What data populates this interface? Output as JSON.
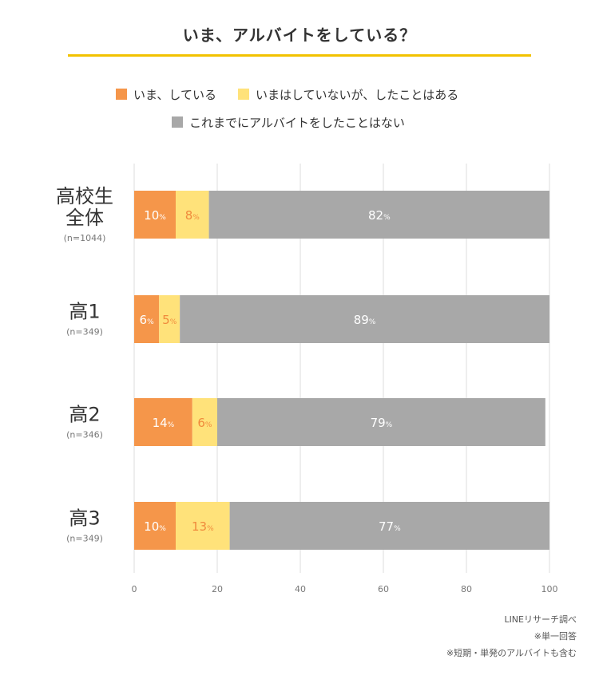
{
  "chart_data": {
    "type": "bar",
    "orientation": "horizontal",
    "stacked": true,
    "title": "いま、アルバイトをしている？",
    "categories": [
      {
        "name": "高校生\n全体",
        "n": "(n=1044)"
      },
      {
        "name": "高1",
        "n": "(n=349)"
      },
      {
        "name": "高2",
        "n": "(n=346)"
      },
      {
        "name": "高3",
        "n": "(n=349)"
      }
    ],
    "series": [
      {
        "name": "いま、している",
        "color": "#F5964A",
        "label_color": "#ffffff",
        "values": [
          10,
          6,
          14,
          10
        ]
      },
      {
        "name": "いまはしていないが、したことはある",
        "color": "#FFE27A",
        "label_color": "#F08A3C",
        "values": [
          8,
          5,
          6,
          13
        ]
      },
      {
        "name": "これまでにアルバイトをしたことはない",
        "color": "#A8A8A8",
        "label_color": "#ffffff",
        "values": [
          82,
          89,
          79,
          77
        ]
      }
    ],
    "value_suffix": "%",
    "xlim": [
      0,
      100
    ],
    "xticks": [
      0,
      20,
      40,
      60,
      80,
      100
    ],
    "grid": true,
    "legend_position": "top"
  },
  "notes": [
    "LINEリサーチ調べ",
    "※単一回答",
    "※短期・単発のアルバイトも含む"
  ]
}
